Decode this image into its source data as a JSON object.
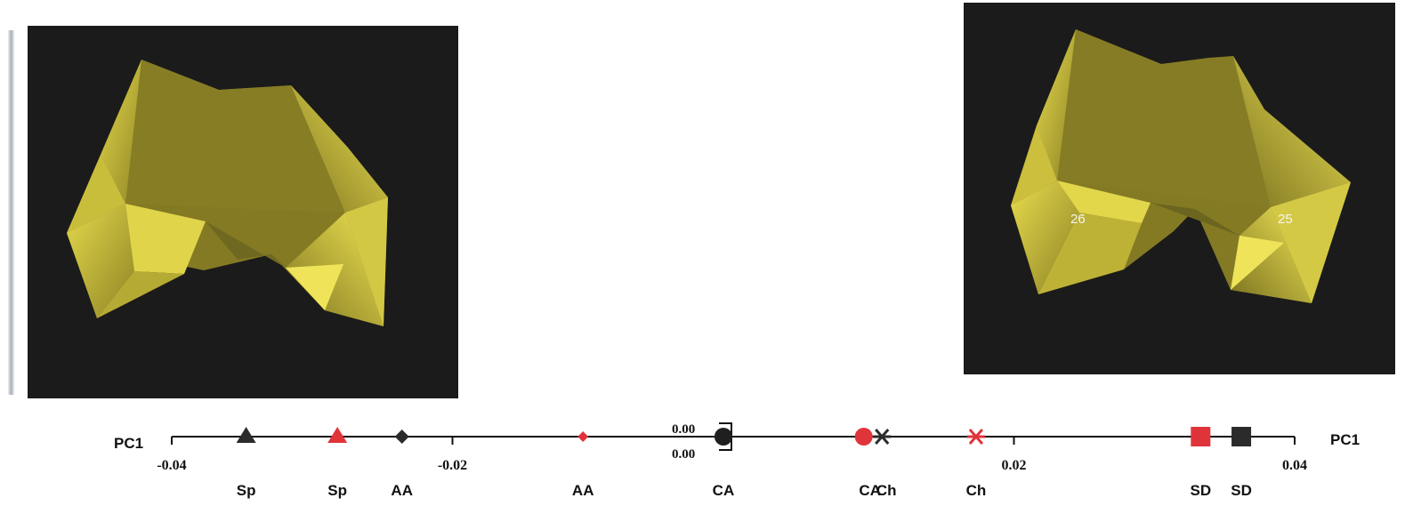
{
  "shapes": {
    "left": {
      "labels": []
    },
    "right": {
      "labels": [
        "26",
        "25"
      ]
    },
    "face_color": "#c8bd3a",
    "background_color": "#1b1b1b"
  },
  "chart_data": {
    "type": "scatter",
    "axis_label_left": "PC1",
    "axis_label_right": "PC1",
    "xlim": [
      -0.04,
      0.04
    ],
    "ticks": [
      {
        "value": -0.04,
        "label": "-0.04"
      },
      {
        "value": -0.02,
        "label": "-0.02"
      },
      {
        "value": 0.02,
        "label": "0.02"
      },
      {
        "value": 0.04,
        "label": "0.04"
      }
    ],
    "zero_labels": [
      "0.00",
      "0.00"
    ],
    "points": [
      {
        "x": -0.0347,
        "marker": "triangle",
        "color": "#2b2b2b",
        "label": "Sp"
      },
      {
        "x": -0.0282,
        "marker": "triangle",
        "color": "#e0343b",
        "label": "Sp"
      },
      {
        "x": -0.0236,
        "marker": "diamond",
        "color": "#2b2b2b",
        "label": "AA"
      },
      {
        "x": -0.0107,
        "marker": "diamond",
        "color": "#e0343b",
        "label": "AA"
      },
      {
        "x": -0.0007,
        "marker": "circle",
        "color": "#1f1f1f",
        "label": "CA"
      },
      {
        "x": 0.0093,
        "marker": "circle",
        "color": "#e0343b",
        "label": "CA"
      },
      {
        "x": 0.0106,
        "marker": "asterisk",
        "color": "#2b2b2b",
        "label": "Ch"
      },
      {
        "x": 0.0173,
        "marker": "asterisk",
        "color": "#e0343b",
        "label": "Ch"
      },
      {
        "x": 0.0333,
        "marker": "square",
        "color": "#e0343b",
        "label": "SD"
      },
      {
        "x": 0.0362,
        "marker": "square",
        "color": "#2b2b2b",
        "label": "SD"
      }
    ]
  }
}
